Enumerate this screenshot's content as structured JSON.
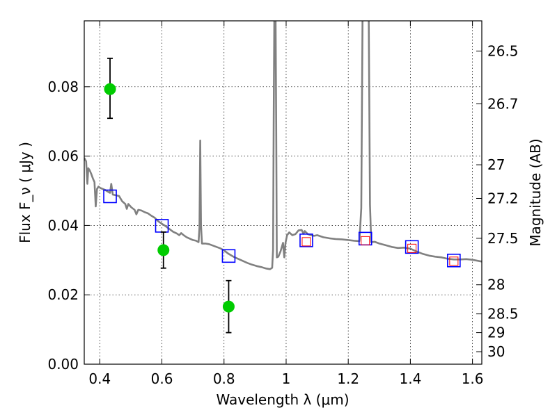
{
  "chart_data": {
    "type": "scatter",
    "xlabel": "Wavelength  λ (μm)",
    "ylabel": "Flux  F_ν  ( μJy )",
    "y2label": "Magnitude (AB)",
    "xlim": [
      0.35,
      1.63
    ],
    "ylim": [
      0.0,
      0.099
    ],
    "grid": true,
    "x_ticks": [
      {
        "value": 0.4,
        "label": "0.4"
      },
      {
        "value": 0.6,
        "label": "0.6"
      },
      {
        "value": 0.8,
        "label": "0.8"
      },
      {
        "value": 1.0,
        "label": "1"
      },
      {
        "value": 1.2,
        "label": "1.2"
      },
      {
        "value": 1.4,
        "label": "1.4"
      },
      {
        "value": 1.6,
        "label": "1.6"
      }
    ],
    "y_ticks": [
      {
        "value": 0.0,
        "label": "0.00"
      },
      {
        "value": 0.02,
        "label": "0.02"
      },
      {
        "value": 0.04,
        "label": "0.04"
      },
      {
        "value": 0.06,
        "label": "0.06"
      },
      {
        "value": 0.08,
        "label": "0.08"
      }
    ],
    "mag_ticks": [
      {
        "label": "26.5",
        "flux": 0.0903
      },
      {
        "label": "26.7",
        "flux": 0.0751
      },
      {
        "label": "27",
        "flux": 0.0575
      },
      {
        "label": "27.2",
        "flux": 0.0478
      },
      {
        "label": "27.5",
        "flux": 0.0363
      },
      {
        "label": "28",
        "flux": 0.0229
      },
      {
        "label": "28.5",
        "flux": 0.0145
      },
      {
        "label": "29",
        "flux": 0.0091
      },
      {
        "label": "30",
        "flux": 0.0036
      }
    ],
    "series": [
      {
        "kind": "line",
        "color": "#808080",
        "points": [
          [
            0.35,
            0.0595
          ],
          [
            0.356,
            0.0585
          ],
          [
            0.36,
            0.052
          ],
          [
            0.363,
            0.0565
          ],
          [
            0.367,
            0.056
          ],
          [
            0.372,
            0.055
          ],
          [
            0.378,
            0.0535
          ],
          [
            0.383,
            0.0525
          ],
          [
            0.387,
            0.0455
          ],
          [
            0.391,
            0.0505
          ],
          [
            0.396,
            0.0512
          ],
          [
            0.402,
            0.0508
          ],
          [
            0.41,
            0.0505
          ],
          [
            0.418,
            0.0502
          ],
          [
            0.425,
            0.0498
          ],
          [
            0.433,
            0.0494
          ],
          [
            0.437,
            0.052
          ],
          [
            0.442,
            0.0489
          ],
          [
            0.452,
            0.0487
          ],
          [
            0.462,
            0.0485
          ],
          [
            0.472,
            0.047
          ],
          [
            0.482,
            0.0462
          ],
          [
            0.487,
            0.0448
          ],
          [
            0.492,
            0.0462
          ],
          [
            0.502,
            0.0452
          ],
          [
            0.512,
            0.0445
          ],
          [
            0.518,
            0.0432
          ],
          [
            0.524,
            0.0445
          ],
          [
            0.534,
            0.0443
          ],
          [
            0.545,
            0.0438
          ],
          [
            0.555,
            0.0435
          ],
          [
            0.566,
            0.0428
          ],
          [
            0.577,
            0.0422
          ],
          [
            0.588,
            0.0412
          ],
          [
            0.6,
            0.0405
          ],
          [
            0.612,
            0.0398
          ],
          [
            0.624,
            0.039
          ],
          [
            0.636,
            0.0382
          ],
          [
            0.648,
            0.0377
          ],
          [
            0.656,
            0.0372
          ],
          [
            0.662,
            0.0378
          ],
          [
            0.67,
            0.0372
          ],
          [
            0.68,
            0.0366
          ],
          [
            0.69,
            0.0362
          ],
          [
            0.7,
            0.0358
          ],
          [
            0.71,
            0.0356
          ],
          [
            0.718,
            0.0352
          ],
          [
            0.721,
            0.0395
          ],
          [
            0.7235,
            0.0645
          ],
          [
            0.726,
            0.04
          ],
          [
            0.729,
            0.0348
          ],
          [
            0.74,
            0.0348
          ],
          [
            0.752,
            0.0346
          ],
          [
            0.764,
            0.0342
          ],
          [
            0.776,
            0.0338
          ],
          [
            0.788,
            0.0334
          ],
          [
            0.8,
            0.0328
          ],
          [
            0.815,
            0.0318
          ],
          [
            0.83,
            0.031
          ],
          [
            0.845,
            0.0304
          ],
          [
            0.86,
            0.0298
          ],
          [
            0.875,
            0.0292
          ],
          [
            0.89,
            0.0287
          ],
          [
            0.905,
            0.0283
          ],
          [
            0.92,
            0.028
          ],
          [
            0.935,
            0.0276
          ],
          [
            0.948,
            0.0274
          ],
          [
            0.955,
            0.0278
          ],
          [
            0.958,
            0.033
          ],
          [
            0.96,
            0.07
          ],
          [
            0.962,
            0.1
          ],
          [
            0.966,
            0.1
          ],
          [
            0.968,
            0.07
          ],
          [
            0.97,
            0.0308
          ],
          [
            0.975,
            0.031
          ],
          [
            0.982,
            0.0325
          ],
          [
            0.99,
            0.035
          ],
          [
            0.994,
            0.0308
          ],
          [
            0.998,
            0.035
          ],
          [
            1.003,
            0.0372
          ],
          [
            1.01,
            0.038
          ],
          [
            1.02,
            0.0372
          ],
          [
            1.03,
            0.0375
          ],
          [
            1.04,
            0.0386
          ],
          [
            1.05,
            0.0387
          ],
          [
            1.056,
            0.0376
          ],
          [
            1.06,
            0.0384
          ],
          [
            1.07,
            0.0375
          ],
          [
            1.08,
            0.0372
          ],
          [
            1.09,
            0.037
          ],
          [
            1.1,
            0.0372
          ],
          [
            1.12,
            0.0366
          ],
          [
            1.14,
            0.0363
          ],
          [
            1.16,
            0.0361
          ],
          [
            1.18,
            0.036
          ],
          [
            1.2,
            0.0358
          ],
          [
            1.22,
            0.0356
          ],
          [
            1.236,
            0.0355
          ],
          [
            1.242,
            0.045
          ],
          [
            1.246,
            0.1
          ],
          [
            1.266,
            0.1
          ],
          [
            1.27,
            0.046
          ],
          [
            1.274,
            0.0352
          ],
          [
            1.285,
            0.0353
          ],
          [
            1.3,
            0.0348
          ],
          [
            1.32,
            0.0343
          ],
          [
            1.34,
            0.0338
          ],
          [
            1.36,
            0.0335
          ],
          [
            1.38,
            0.0336
          ],
          [
            1.4,
            0.0333
          ],
          [
            1.42,
            0.0325
          ],
          [
            1.44,
            0.0318
          ],
          [
            1.46,
            0.0313
          ],
          [
            1.48,
            0.031
          ],
          [
            1.5,
            0.0308
          ],
          [
            1.52,
            0.0304
          ],
          [
            1.54,
            0.0302
          ],
          [
            1.56,
            0.0302
          ],
          [
            1.58,
            0.0303
          ],
          [
            1.6,
            0.0301
          ],
          [
            1.63,
            0.0296
          ]
        ]
      },
      {
        "kind": "open-square",
        "color": "#0000ff",
        "points": [
          [
            0.433,
            0.0484
          ],
          [
            0.6,
            0.0399
          ],
          [
            0.815,
            0.0312
          ],
          [
            1.065,
            0.0357
          ],
          [
            1.255,
            0.0362
          ],
          [
            1.405,
            0.0338
          ],
          [
            1.54,
            0.0299
          ]
        ]
      },
      {
        "kind": "open-square-small",
        "color": "#ff0000",
        "points": [
          [
            1.065,
            0.0353
          ],
          [
            1.255,
            0.0356
          ],
          [
            1.405,
            0.0334
          ],
          [
            1.54,
            0.0297
          ]
        ]
      },
      {
        "kind": "errorbar-point",
        "color": "#00cc00",
        "errorbar_color": "#000000",
        "points": [
          {
            "x": 0.433,
            "y": 0.0793,
            "ylow": 0.0709,
            "yhigh": 0.0882
          },
          {
            "x": 0.605,
            "y": 0.0329,
            "ylow": 0.0277,
            "yhigh": 0.0381
          },
          {
            "x": 0.815,
            "y": 0.0166,
            "ylow": 0.0091,
            "yhigh": 0.0241
          }
        ]
      }
    ]
  }
}
